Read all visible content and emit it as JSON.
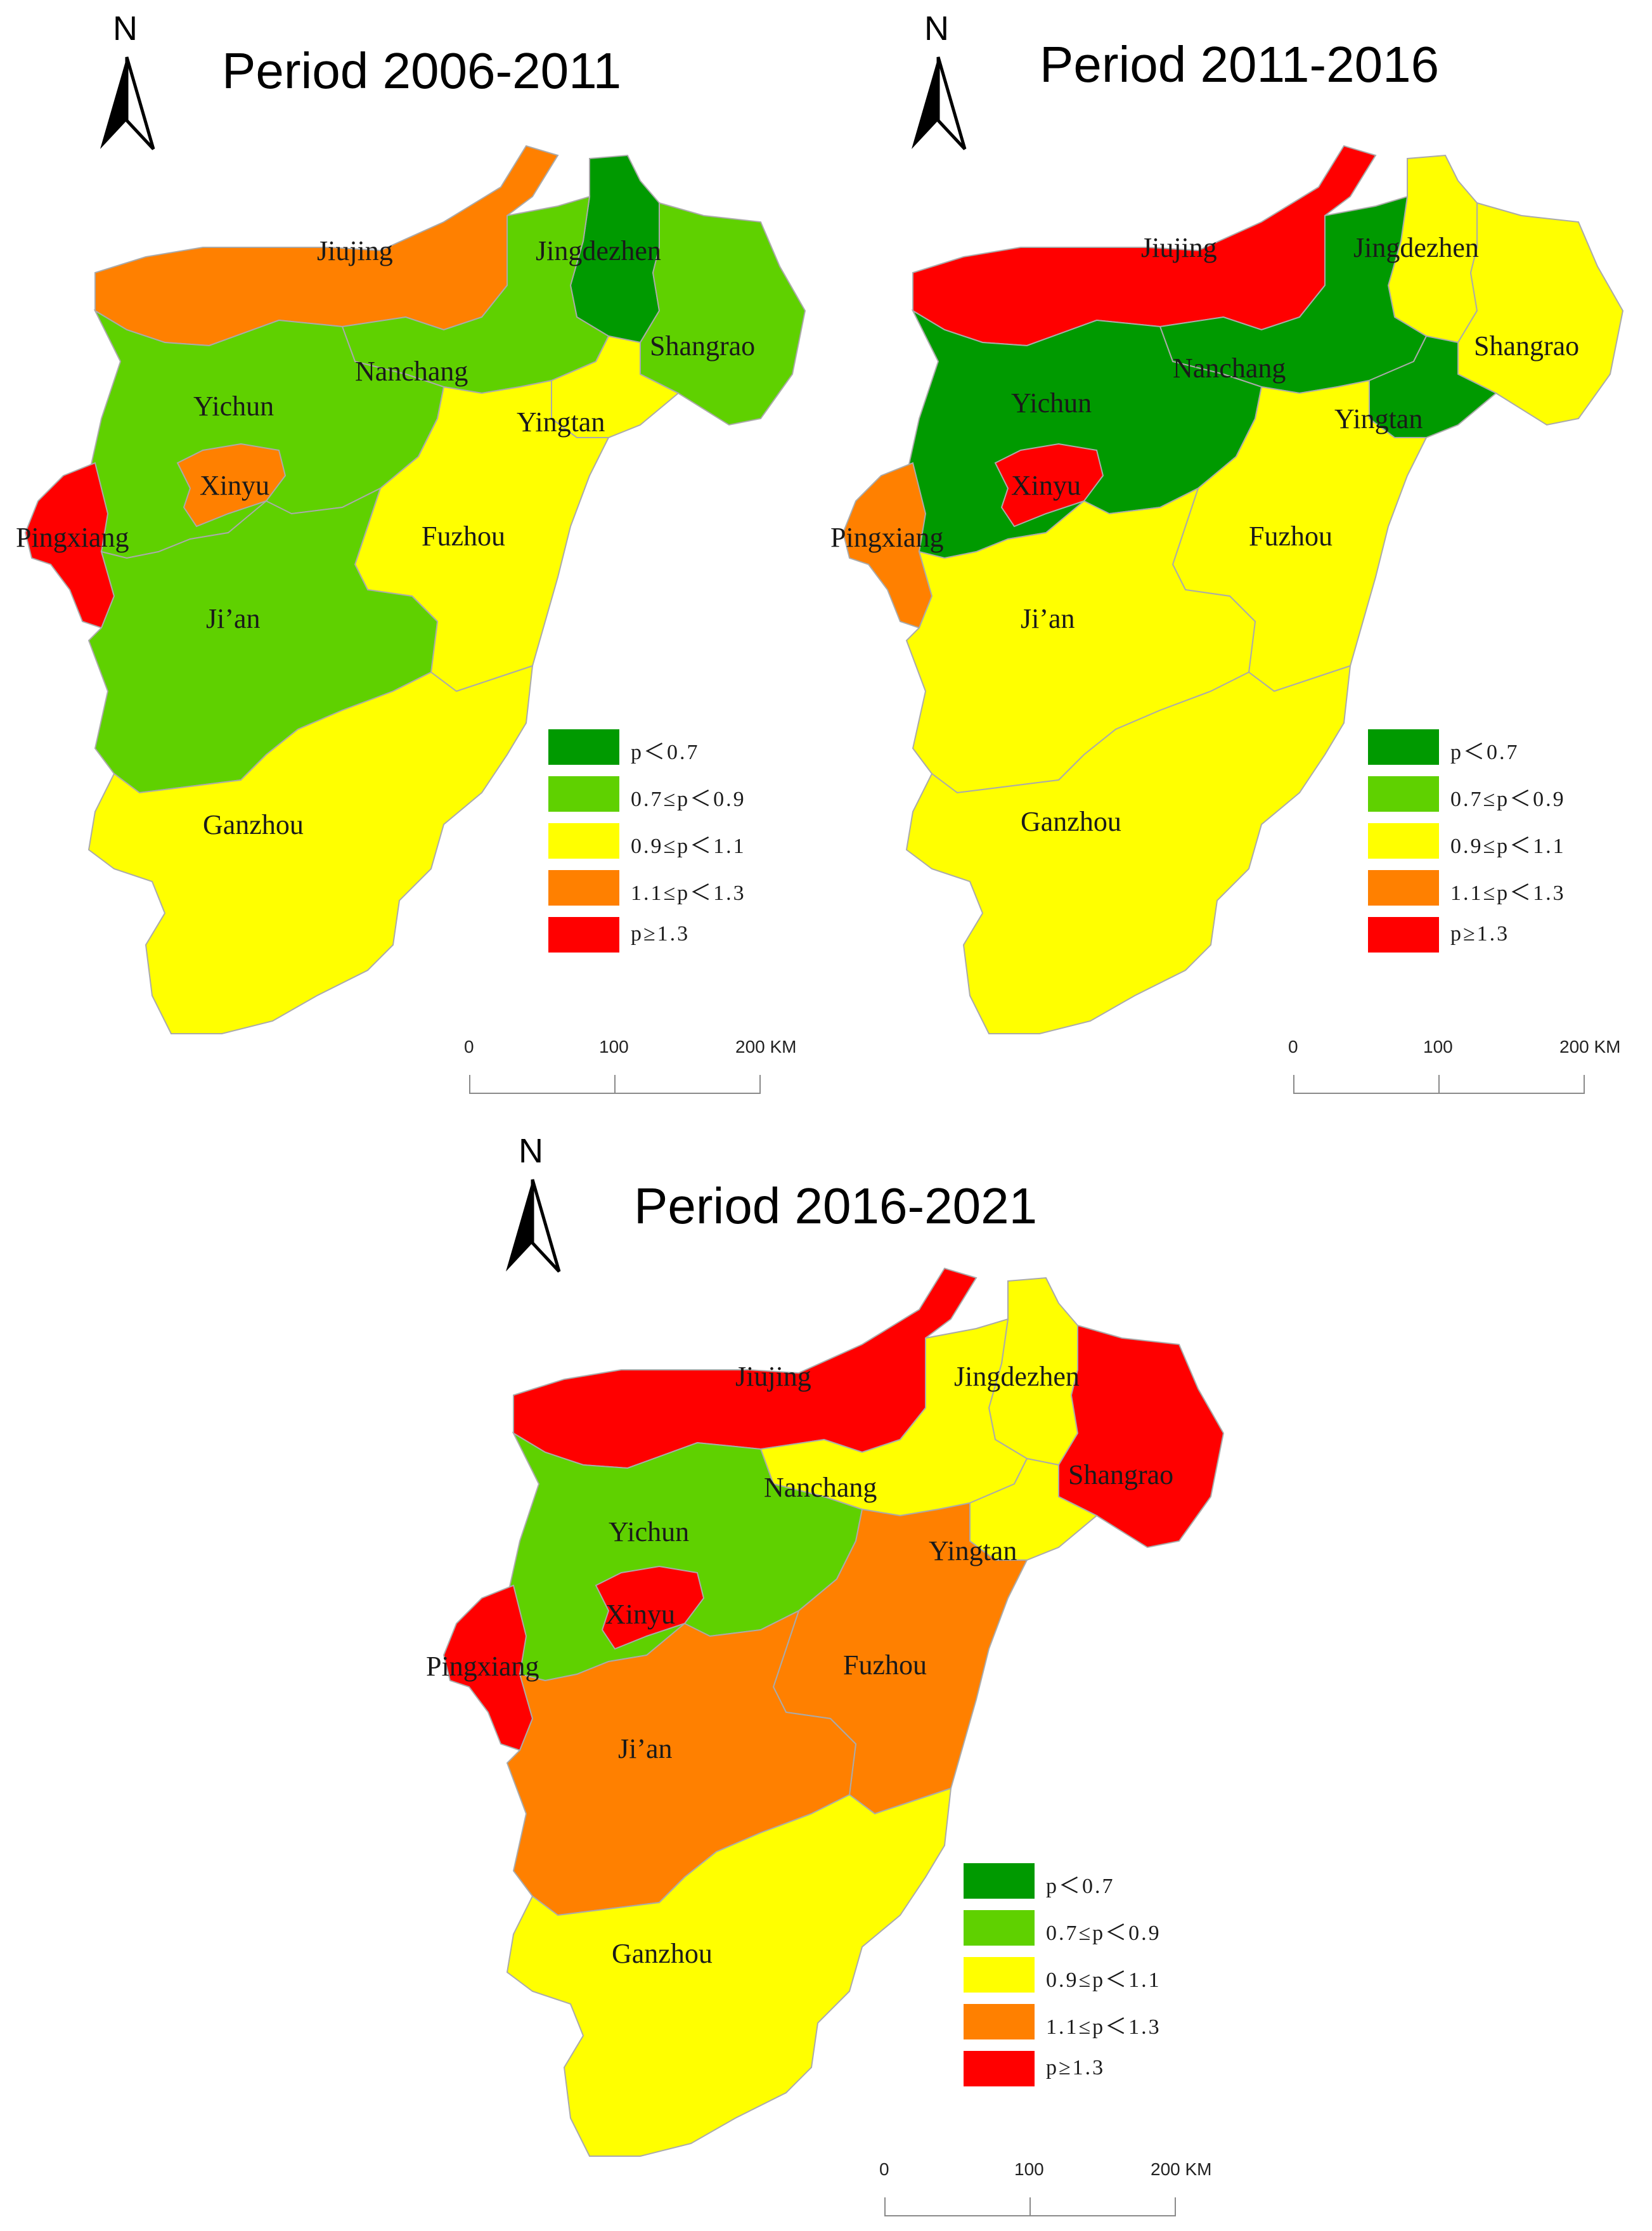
{
  "colors": {
    "p_lt_07": "#009a00",
    "p_07_09": "#5fd100",
    "p_09_11": "#ffff00",
    "p_11_13": "#ff8000",
    "p_ge_13": "#ff0000"
  },
  "north_letter": "N",
  "legend": [
    {
      "label": "p＜0.7",
      "class": "p_lt_07"
    },
    {
      "label": "0.7≤p＜0.9",
      "class": "p_07_09"
    },
    {
      "label": "0.9≤p＜1.1",
      "class": "p_09_11"
    },
    {
      "label": "1.1≤p＜1.3",
      "class": "p_11_13"
    },
    {
      "label": "p≥1.3",
      "class": "p_ge_13"
    }
  ],
  "scale": {
    "ticks": [
      "0",
      "100",
      "200 KM"
    ]
  },
  "regions": [
    "Jiujing",
    "Jingdezhen",
    "Shangrao",
    "Nanchang",
    "Yichun",
    "Yingtan",
    "Xinyu",
    "Pingxiang",
    "Fuzhou",
    "Ji’an",
    "Ganzhou"
  ],
  "maps": [
    {
      "title": "Period 2006-2011",
      "classes": {
        "Jiujing": "p_11_13",
        "Jingdezhen": "p_lt_07",
        "Shangrao": "p_07_09",
        "Nanchang": "p_07_09",
        "Yichun": "p_07_09",
        "Yingtan": "p_09_11",
        "Xinyu": "p_11_13",
        "Pingxiang": "p_ge_13",
        "Fuzhou": "p_09_11",
        "Ji’an": "p_07_09",
        "Ganzhou": "p_09_11"
      }
    },
    {
      "title": "Period 2011-2016",
      "classes": {
        "Jiujing": "p_ge_13",
        "Jingdezhen": "p_09_11",
        "Shangrao": "p_09_11",
        "Nanchang": "p_lt_07",
        "Yichun": "p_lt_07",
        "Yingtan": "p_lt_07",
        "Xinyu": "p_ge_13",
        "Pingxiang": "p_11_13",
        "Fuzhou": "p_09_11",
        "Ji’an": "p_09_11",
        "Ganzhou": "p_09_11"
      }
    },
    {
      "title": "Period 2016-2021",
      "classes": {
        "Jiujing": "p_ge_13",
        "Jingdezhen": "p_09_11",
        "Shangrao": "p_ge_13",
        "Nanchang": "p_09_11",
        "Yichun": "p_07_09",
        "Yingtan": "p_09_11",
        "Xinyu": "p_ge_13",
        "Pingxiang": "p_ge_13",
        "Fuzhou": "p_11_13",
        "Ji’an": "p_11_13",
        "Ganzhou": "p_09_11"
      }
    }
  ]
}
